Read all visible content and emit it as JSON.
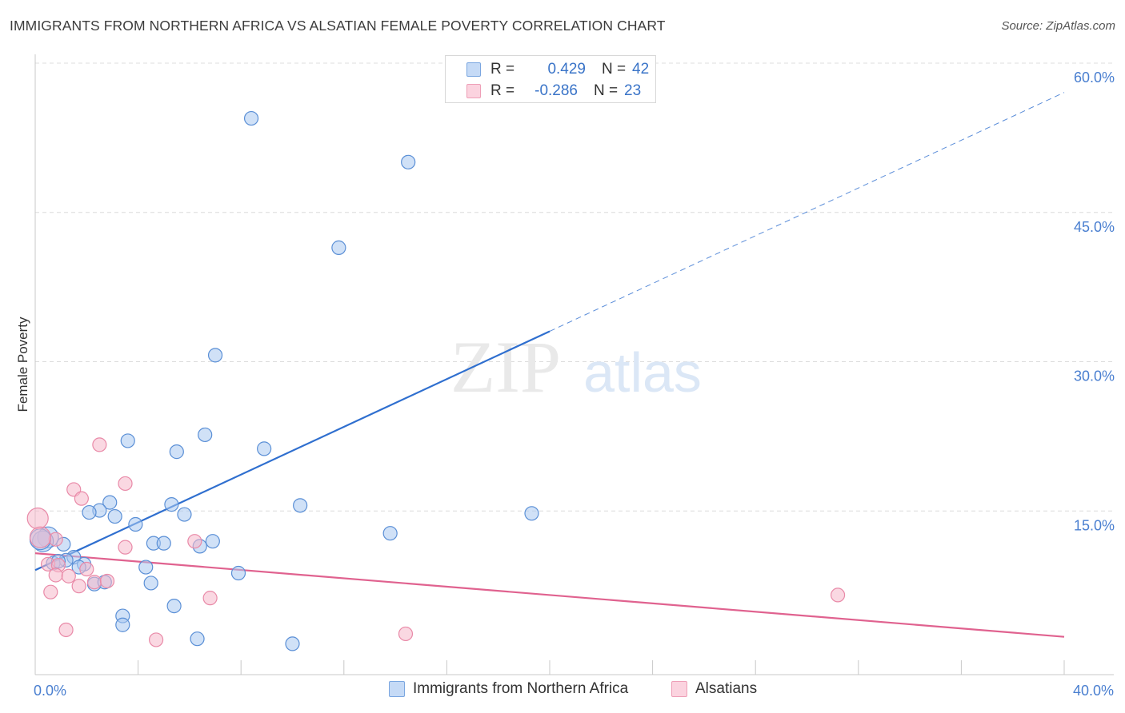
{
  "header": {
    "title": "IMMIGRANTS FROM NORTHERN AFRICA VS ALSATIAN FEMALE POVERTY CORRELATION CHART",
    "source": "Source: ZipAtlas.com"
  },
  "watermark": {
    "zip": "ZIP",
    "atlas": "atlas"
  },
  "legend": {
    "rows": [
      {
        "r_label": "R =",
        "r_value": "0.429",
        "n_label": "N =",
        "n_value": "42",
        "color": "#a9c8f0"
      },
      {
        "r_label": "R =",
        "r_value": "-0.286",
        "n_label": "N =",
        "n_value": "23",
        "color": "#f5b8ca"
      }
    ]
  },
  "colors": {
    "blue_fill": "#a9c8f0",
    "blue_stroke": "#5a8fd6",
    "blue_line": "#2f6fcf",
    "pink_fill": "#f5b8ca",
    "pink_stroke": "#e98aa8",
    "pink_line": "#e0628f",
    "grid": "#dcdcdc",
    "tick_text": "#4a7fd0"
  },
  "chart_data": {
    "type": "scatter",
    "title": "IMMIGRANTS FROM NORTHERN AFRICA VS ALSATIAN FEMALE POVERTY CORRELATION CHART",
    "xlabel": "",
    "ylabel": "Female Poverty",
    "xlim": [
      0,
      40
    ],
    "ylim": [
      0,
      60
    ],
    "x_tick_labels": [
      {
        "value": 0,
        "label": "0.0%"
      },
      {
        "value": 40,
        "label": "40.0%"
      }
    ],
    "y_tick_labels": [
      {
        "value": 15,
        "label": "15.0%"
      },
      {
        "value": 30,
        "label": "30.0%"
      },
      {
        "value": 45,
        "label": "45.0%"
      },
      {
        "value": 60,
        "label": "60.0%"
      }
    ],
    "x_minor_ticks": [
      0,
      4,
      8,
      12,
      16,
      20,
      24,
      28,
      32,
      36,
      40
    ],
    "series": [
      {
        "name": "Immigrants from Northern Africa",
        "color": "blue",
        "R": 0.429,
        "N": 42,
        "points": [
          [
            8.4,
            55.9
          ],
          [
            14.5,
            51.5
          ],
          [
            11.8,
            42.9
          ],
          [
            7.0,
            32.1
          ],
          [
            3.6,
            23.5
          ],
          [
            6.6,
            24.1
          ],
          [
            5.5,
            22.4
          ],
          [
            8.9,
            22.7
          ],
          [
            2.9,
            17.3
          ],
          [
            2.5,
            16.5
          ],
          [
            2.1,
            16.3
          ],
          [
            3.1,
            15.9
          ],
          [
            5.3,
            17.1
          ],
          [
            5.8,
            16.1
          ],
          [
            10.3,
            17.0
          ],
          [
            19.3,
            16.2
          ],
          [
            3.9,
            15.1
          ],
          [
            0.5,
            13.8
          ],
          [
            0.3,
            13.4
          ],
          [
            1.1,
            13.1
          ],
          [
            4.6,
            13.2
          ],
          [
            5.0,
            13.2
          ],
          [
            6.4,
            12.9
          ],
          [
            6.9,
            13.4
          ],
          [
            13.8,
            14.2
          ],
          [
            1.5,
            11.8
          ],
          [
            1.2,
            11.5
          ],
          [
            0.7,
            11.2
          ],
          [
            0.9,
            11.4
          ],
          [
            1.9,
            11.1
          ],
          [
            1.7,
            10.8
          ],
          [
            4.3,
            10.8
          ],
          [
            7.9,
            10.2
          ],
          [
            2.3,
            9.1
          ],
          [
            2.7,
            9.3
          ],
          [
            4.5,
            9.2
          ],
          [
            5.4,
            6.9
          ],
          [
            3.4,
            5.9
          ],
          [
            3.4,
            5.0
          ],
          [
            6.3,
            3.6
          ],
          [
            10.0,
            3.1
          ],
          [
            0.2,
            13.6
          ]
        ]
      },
      {
        "name": "Alsatians",
        "color": "pink",
        "R": -0.286,
        "N": 23,
        "points": [
          [
            2.5,
            23.1
          ],
          [
            3.5,
            19.2
          ],
          [
            1.5,
            18.6
          ],
          [
            1.8,
            17.7
          ],
          [
            0.1,
            15.7
          ],
          [
            0.8,
            13.6
          ],
          [
            6.2,
            13.4
          ],
          [
            3.5,
            12.8
          ],
          [
            0.5,
            11.1
          ],
          [
            0.9,
            11.0
          ],
          [
            2.0,
            10.6
          ],
          [
            0.8,
            10.0
          ],
          [
            1.3,
            9.9
          ],
          [
            2.3,
            9.3
          ],
          [
            2.8,
            9.4
          ],
          [
            1.7,
            8.9
          ],
          [
            0.6,
            8.3
          ],
          [
            6.8,
            7.7
          ],
          [
            31.2,
            8.0
          ],
          [
            1.2,
            4.5
          ],
          [
            4.7,
            3.5
          ],
          [
            14.4,
            4.1
          ],
          [
            0.2,
            13.8
          ]
        ]
      }
    ],
    "trend_lines": [
      {
        "series": "Immigrants from Northern Africa",
        "x_start": 0,
        "y_start": 10.5,
        "x_solid_end": 20,
        "x_end": 40,
        "y_end": 58.5,
        "dashed_after_solid": true
      },
      {
        "series": "Alsatians",
        "x_start": 0,
        "y_start": 12.2,
        "x_end": 40,
        "y_end": 3.8
      }
    ]
  }
}
